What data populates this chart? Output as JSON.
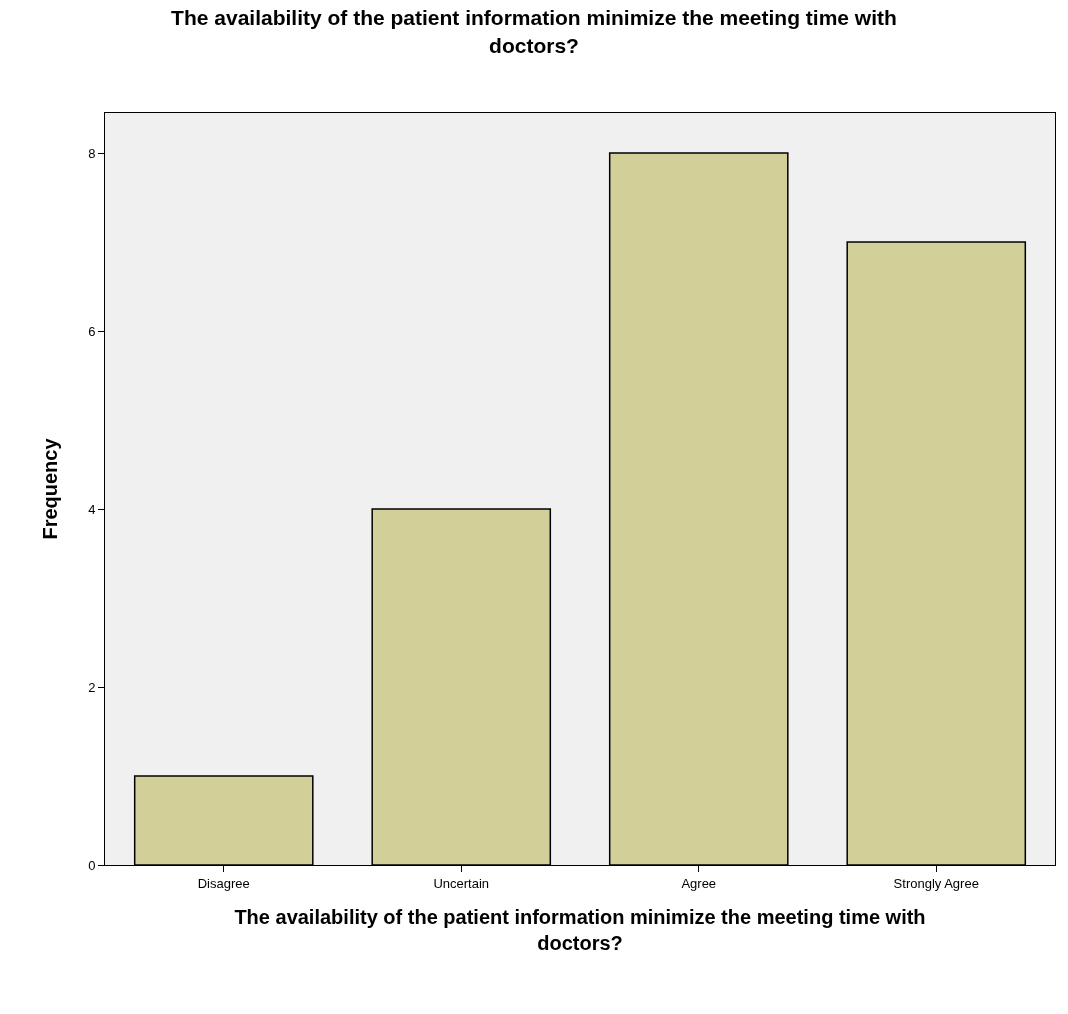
{
  "chart_data": {
    "type": "bar",
    "title": "The availability of the patient information minimize the meeting time with doctors?",
    "xlabel": "The availability of the patient information minimize the meeting time with doctors?",
    "ylabel": "Frequency",
    "categories": [
      "Disagree",
      "Uncertain",
      "Agree",
      "Strongly Agree"
    ],
    "values": [
      1,
      4,
      8,
      7
    ],
    "color": "#d3cf98",
    "ylim": [
      0,
      8.45
    ],
    "yticks": [
      0,
      2,
      4,
      6,
      8
    ],
    "grid": false
  }
}
